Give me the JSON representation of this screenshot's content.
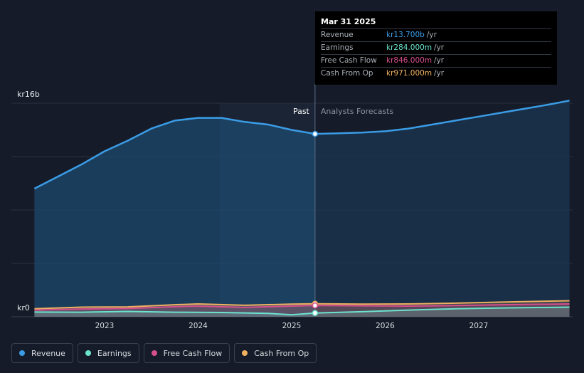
{
  "tooltip": {
    "date": "Mar 31 2025",
    "rows": [
      {
        "label": "Revenue",
        "value": "kr13.700b",
        "unit": "/yr",
        "color": "#3b9ce6"
      },
      {
        "label": "Earnings",
        "value": "kr284.000m",
        "unit": "/yr",
        "color": "#6be3cd"
      },
      {
        "label": "Free Cash Flow",
        "value": "kr846.000m",
        "unit": "/yr",
        "color": "#d64f8e"
      },
      {
        "label": "Cash From Op",
        "value": "kr971.000m",
        "unit": "/yr",
        "color": "#f0b060"
      }
    ]
  },
  "legend": [
    {
      "label": "Revenue",
      "color": "#3b9ce6"
    },
    {
      "label": "Earnings",
      "color": "#6be3cd"
    },
    {
      "label": "Free Cash Flow",
      "color": "#d64f8e"
    },
    {
      "label": "Cash From Op",
      "color": "#f0b060"
    }
  ],
  "chart_data": {
    "type": "line",
    "xlabel": "",
    "ylabel": "",
    "ylim": [
      0,
      16
    ],
    "y_unit": "kr billions",
    "y_tick_labels": [
      {
        "value": 16,
        "label": "kr16b"
      },
      {
        "value": 0,
        "label": "kr0"
      }
    ],
    "x_ticks": [
      2023,
      2024,
      2025,
      2026,
      2027
    ],
    "x_range": [
      2022.25,
      2027.97
    ],
    "divider_x": 2025.25,
    "past_label": "Past",
    "forecast_label": "Analysts Forecasts",
    "highlight_start": 2024.23,
    "grid": true,
    "series": [
      {
        "name": "Revenue",
        "color": "#3b9ce6",
        "x": [
          2022.25,
          2022.5,
          2022.75,
          2023.0,
          2023.25,
          2023.5,
          2023.75,
          2024.0,
          2024.25,
          2024.5,
          2024.75,
          2025.0,
          2025.25,
          2025.5,
          2025.75,
          2026.0,
          2026.25,
          2026.5,
          2026.75,
          2027.0,
          2027.25,
          2027.5,
          2027.75,
          2027.97
        ],
        "y": [
          9.6,
          10.5,
          11.4,
          12.4,
          13.2,
          14.1,
          14.7,
          14.9,
          14.9,
          14.6,
          14.4,
          14.0,
          13.7,
          13.75,
          13.8,
          13.9,
          14.1,
          14.4,
          14.7,
          15.0,
          15.3,
          15.6,
          15.9,
          16.2
        ]
      },
      {
        "name": "Earnings",
        "color": "#6be3cd",
        "x": [
          2022.25,
          2022.75,
          2023.25,
          2023.75,
          2024.25,
          2024.75,
          2025.0,
          2025.25,
          2025.75,
          2026.25,
          2026.75,
          2027.25,
          2027.97
        ],
        "y": [
          0.35,
          0.34,
          0.4,
          0.34,
          0.32,
          0.25,
          0.15,
          0.28,
          0.38,
          0.5,
          0.6,
          0.66,
          0.72
        ]
      },
      {
        "name": "Free Cash Flow",
        "color": "#d64f8e",
        "x": [
          2022.25,
          2022.75,
          2023.25,
          2023.75,
          2024.0,
          2024.5,
          2025.0,
          2025.25,
          2025.75,
          2026.25,
          2026.75,
          2027.25,
          2027.97
        ],
        "y": [
          0.5,
          0.58,
          0.62,
          0.75,
          0.8,
          0.7,
          0.8,
          0.846,
          0.82,
          0.8,
          0.84,
          0.9,
          0.96
        ]
      },
      {
        "name": "Cash From Op",
        "color": "#f0b060",
        "x": [
          2022.25,
          2022.75,
          2023.25,
          2023.75,
          2024.0,
          2024.5,
          2025.0,
          2025.25,
          2025.75,
          2026.25,
          2026.75,
          2027.25,
          2027.97
        ],
        "y": [
          0.6,
          0.72,
          0.74,
          0.9,
          0.96,
          0.86,
          0.95,
          0.971,
          0.95,
          0.96,
          1.02,
          1.1,
          1.2
        ]
      }
    ]
  }
}
